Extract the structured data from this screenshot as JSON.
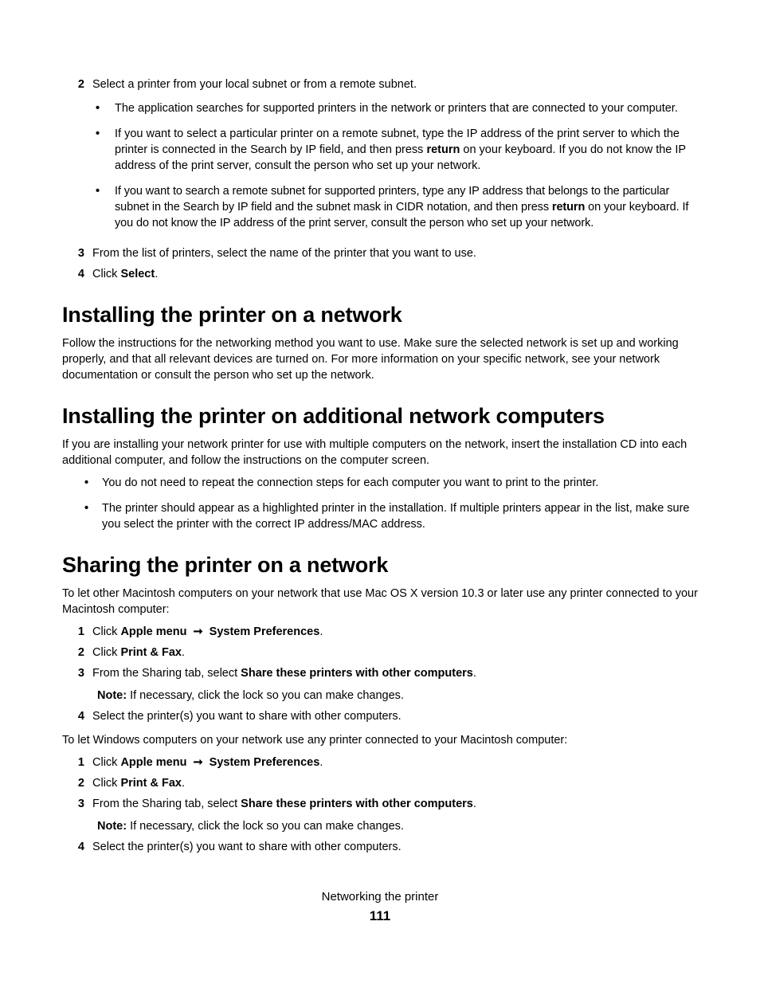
{
  "step2": {
    "num": "2",
    "text": "Select a printer from your local subnet or from a remote subnet.",
    "bullets": [
      "The application searches for supported printers in the network or printers that are connected to your computer.",
      "If you want to select a particular printer on a remote subnet, type the IP address of the print server to which the printer is connected in the Search by IP field, and then press <strong>return</strong> on your keyboard. If you do not know the IP address of the print server, consult the person who set up your network.",
      "If you want to search a remote subnet for supported printers, type any IP address that belongs to the particular subnet in the Search by IP field and the subnet mask in CIDR notation, and then press <strong>return</strong> on your keyboard. If you do not know the IP address of the print server, consult the person who set up your network."
    ]
  },
  "step3": {
    "num": "3",
    "text": "From the list of printers, select the name of the printer that you want to use."
  },
  "step4": {
    "num": "4",
    "text": "Click <strong>Select</strong>."
  },
  "h_install_network": "Installing the printer on a network",
  "p_install_network": "Follow the instructions for the networking method you want to use. Make sure the selected network is set up and working properly, and that all relevant devices are turned on. For more information on your specific network, see your network documentation or consult the person who set up the network.",
  "h_install_additional": "Installing the printer on additional network computers",
  "p_install_additional": "If you are installing your network printer for use with multiple computers on the network, insert the installation CD into each additional computer, and follow the instructions on the computer screen.",
  "additional_bullets": [
    "You do not need to repeat the connection steps for each computer you want to print to the printer.",
    "The printer should appear as a highlighted printer in the installation. If multiple printers appear in the list, make sure you select the printer with the correct IP address/MAC address."
  ],
  "h_sharing": "Sharing the printer on a network",
  "p_sharing_mac": "To let other Macintosh computers on your network that use Mac OS X version 10.3 or later use any printer connected to your Macintosh computer:",
  "share_steps_a": [
    {
      "num": "1",
      "html": "Click <strong>Apple menu</strong> <span class=\"arrow\">&#10142;</span> <strong>System Preferences</strong>."
    },
    {
      "num": "2",
      "html": "Click <strong>Print &amp; Fax</strong>."
    },
    {
      "num": "3",
      "html": "From the Sharing tab, select <strong>Share these printers with other computers</strong>.",
      "note": "<strong>Note:</strong> If necessary, click the lock so you can make changes."
    },
    {
      "num": "4",
      "html": "Select the printer(s) you want to share with other computers."
    }
  ],
  "p_sharing_win": "To let Windows computers on your network use any printer connected to your Macintosh computer:",
  "share_steps_b": [
    {
      "num": "1",
      "html": "Click <strong>Apple menu</strong> <span class=\"arrow\">&#10142;</span> <strong>System Preferences</strong>."
    },
    {
      "num": "2",
      "html": "Click <strong>Print &amp; Fax</strong>."
    },
    {
      "num": "3",
      "html": "From the Sharing tab, select <strong>Share these printers with other computers</strong>.",
      "note": "<strong>Note:</strong> If necessary, click the lock so you can make changes."
    },
    {
      "num": "4",
      "html": "Select the printer(s) you want to share with other computers."
    }
  ],
  "footer_title": "Networking the printer",
  "footer_page": "111",
  "dot": "•"
}
